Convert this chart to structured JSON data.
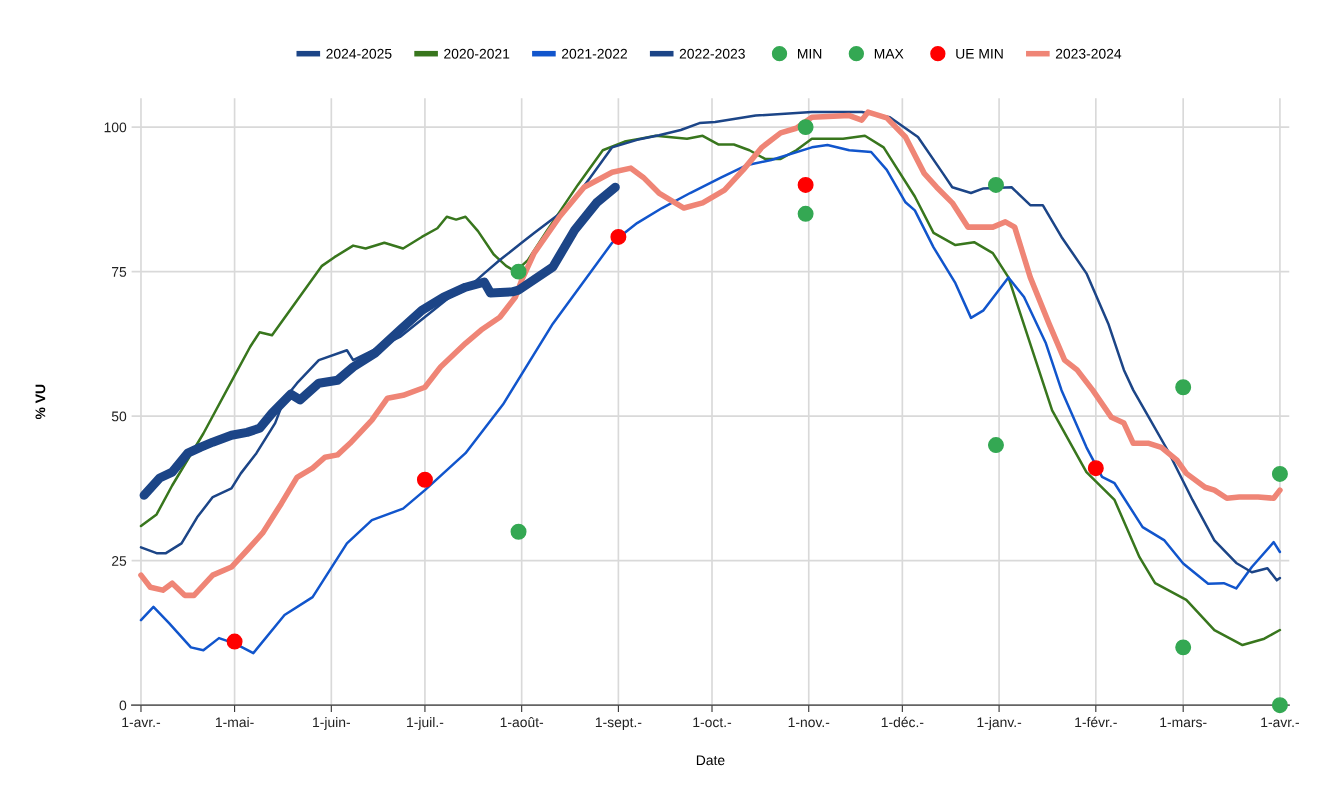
{
  "chart_data": {
    "type": "line",
    "xlabel": "Date",
    "ylabel": "% VU",
    "xlim": [
      "2024-03-29",
      "2025-04-04"
    ],
    "ylim": [
      0,
      105
    ],
    "xticks": [
      {
        "value": "2024-04-01",
        "label": "1-avr.-"
      },
      {
        "value": "2024-05-01",
        "label": "1-mai-"
      },
      {
        "value": "2024-06-01",
        "label": "1-juin-"
      },
      {
        "value": "2024-07-01",
        "label": "1-juil.-"
      },
      {
        "value": "2024-08-01",
        "label": "1-août-"
      },
      {
        "value": "2024-09-01",
        "label": "1-sept.-"
      },
      {
        "value": "2024-10-01",
        "label": "1-oct.-"
      },
      {
        "value": "2024-11-01",
        "label": "1-nov.-"
      },
      {
        "value": "2024-12-01",
        "label": "1-déc.-"
      },
      {
        "value": "2025-01-01",
        "label": "1-janv.-"
      },
      {
        "value": "2025-02-01",
        "label": "1-févr.-"
      },
      {
        "value": "2025-03-01",
        "label": "1-mars-"
      },
      {
        "value": "2025-04-01",
        "label": "1-avr.-"
      }
    ],
    "yticks": [
      0,
      25,
      50,
      75,
      100
    ],
    "grid": true,
    "legend": "top",
    "series": [
      {
        "name": "2024-2025",
        "color": "#1c4587",
        "x": [
          "2024-04-02",
          "2024-04-07",
          "2024-04-11",
          "2024-04-16",
          "2024-04-20",
          "2024-04-24",
          "2024-04-30",
          "2024-05-05",
          "2024-05-09",
          "2024-05-13",
          "2024-05-19",
          "2024-05-22",
          "2024-05-28",
          "2024-06-03",
          "2024-06-08",
          "2024-06-15",
          "2024-06-23",
          "2024-06-30",
          "2024-07-07",
          "2024-07-14",
          "2024-07-20",
          "2024-07-22",
          "2024-07-29",
          "2024-07-31",
          "2024-08-11",
          "2024-08-18",
          "2024-08-25",
          "2024-08-31"
        ],
        "values": [
          36.3,
          39.3,
          40.3,
          43.6,
          44.6,
          45.5,
          46.7,
          47.2,
          47.9,
          50.5,
          53.8,
          52.8,
          55.7,
          56.2,
          58.5,
          60.9,
          64.9,
          68.3,
          70.6,
          72.3,
          73.2,
          71.3,
          71.5,
          71.8,
          75.8,
          82.2,
          86.9,
          89.6
        ]
      },
      {
        "name": "2020-2021",
        "color": "#38761d",
        "x": [
          "2024-04-01",
          "2024-04-06",
          "2024-04-11",
          "2024-04-21",
          "2024-05-01",
          "2024-05-06",
          "2024-05-09",
          "2024-05-13",
          "2024-05-21",
          "2024-05-29",
          "2024-06-02",
          "2024-06-08",
          "2024-06-12",
          "2024-06-18",
          "2024-06-24",
          "2024-06-30",
          "2024-07-05",
          "2024-07-08",
          "2024-07-11",
          "2024-07-14",
          "2024-07-18",
          "2024-07-23",
          "2024-07-27",
          "2024-07-30",
          "2024-08-03",
          "2024-08-09",
          "2024-08-19",
          "2024-08-27",
          "2024-09-03",
          "2024-09-08",
          "2024-09-13",
          "2024-09-23",
          "2024-09-28",
          "2024-10-03",
          "2024-10-08",
          "2024-10-13",
          "2024-10-18",
          "2024-10-23",
          "2024-10-28",
          "2024-11-02",
          "2024-11-12",
          "2024-11-19",
          "2024-11-25",
          "2024-12-05",
          "2024-12-11",
          "2024-12-18",
          "2024-12-24",
          "2024-12-30",
          "2025-01-04",
          "2025-01-18",
          "2025-01-29",
          "2025-02-07",
          "2025-02-15",
          "2025-02-20",
          "2025-03-02",
          "2025-03-11",
          "2025-03-20",
          "2025-03-27",
          "2025-04-01"
        ],
        "values": [
          31,
          33,
          38,
          47,
          57,
          62,
          64.5,
          64,
          70,
          76,
          77.5,
          79.5,
          79,
          80,
          79,
          81,
          82.5,
          84.5,
          84,
          84.5,
          82,
          78,
          76,
          75,
          77,
          82,
          90,
          96,
          97.5,
          98,
          98.5,
          98,
          98.5,
          97,
          97,
          96,
          94.5,
          94.5,
          96,
          98,
          98,
          98.5,
          96.5,
          88,
          81.7,
          79.6,
          80.1,
          78.2,
          74,
          51,
          40.3,
          35.5,
          25.6,
          21.1,
          18.2,
          13,
          10.4,
          11.5,
          13
        ]
      },
      {
        "name": "2021-2022",
        "color": "#1155cc",
        "x": [
          "2024-04-01",
          "2024-04-05",
          "2024-04-10",
          "2024-04-17",
          "2024-04-21",
          "2024-04-26",
          "2024-05-01",
          "2024-05-07",
          "2024-05-17",
          "2024-05-26",
          "2024-06-06",
          "2024-06-14",
          "2024-06-24",
          "2024-07-01",
          "2024-07-14",
          "2024-07-26",
          "2024-08-11",
          "2024-08-30",
          "2024-09-07",
          "2024-09-15",
          "2024-09-24",
          "2024-10-04",
          "2024-10-12",
          "2024-10-20",
          "2024-11-02",
          "2024-11-07",
          "2024-11-14",
          "2024-11-21",
          "2024-11-26",
          "2024-12-02",
          "2024-12-05",
          "2024-12-11",
          "2024-12-18",
          "2024-12-23",
          "2024-12-27",
          "2025-01-04",
          "2025-01-09",
          "2025-01-16",
          "2025-01-21",
          "2025-01-29",
          "2025-02-03",
          "2025-02-07",
          "2025-02-16",
          "2025-02-23",
          "2025-03-01",
          "2025-03-09",
          "2025-03-14",
          "2025-03-18",
          "2025-03-23",
          "2025-03-30",
          "2025-04-01"
        ],
        "values": [
          14.7,
          17,
          14.2,
          10,
          9.5,
          11.6,
          10.7,
          9,
          15.6,
          18.7,
          28,
          32,
          34,
          37.2,
          43.6,
          52,
          66,
          80,
          83.4,
          86,
          88.6,
          91.3,
          93.4,
          94.3,
          96.5,
          96.9,
          96,
          95.7,
          92.6,
          87,
          85.6,
          79.2,
          73,
          67,
          68.3,
          74,
          70.6,
          62.6,
          54.5,
          44.6,
          39.5,
          38.4,
          30.8,
          28.5,
          24.5,
          21,
          21.1,
          20.2,
          23.9,
          28.2,
          26.5
        ]
      },
      {
        "name": "2022-2023",
        "color": "#1c4587",
        "x": [
          "2024-04-01",
          "2024-04-06",
          "2024-04-09",
          "2024-04-14",
          "2024-04-19",
          "2024-04-24",
          "2024-04-30",
          "2024-05-03",
          "2024-05-08",
          "2024-05-14",
          "2024-05-17",
          "2024-05-21",
          "2024-05-28",
          "2024-06-06",
          "2024-06-08",
          "2024-06-23",
          "2024-07-09",
          "2024-07-14",
          "2024-07-20",
          "2024-07-25",
          "2024-08-01",
          "2024-08-05",
          "2024-08-16",
          "2024-08-23",
          "2024-08-30",
          "2024-09-07",
          "2024-09-14",
          "2024-09-21",
          "2024-09-27",
          "2024-10-02",
          "2024-10-15",
          "2024-11-02",
          "2024-11-18",
          "2024-11-27",
          "2024-12-02",
          "2024-12-06",
          "2024-12-14",
          "2024-12-17",
          "2024-12-23",
          "2024-12-27",
          "2025-01-05",
          "2025-01-11",
          "2025-01-15",
          "2025-01-21",
          "2025-01-29",
          "2025-02-05",
          "2025-02-10",
          "2025-02-13",
          "2025-02-18",
          "2025-02-24",
          "2025-03-04",
          "2025-03-11",
          "2025-03-18",
          "2025-03-23",
          "2025-03-28",
          "2025-03-31",
          "2025-04-01"
        ],
        "values": [
          27.3,
          26.3,
          26.3,
          28,
          32.5,
          36,
          37.5,
          40.1,
          43.6,
          48.8,
          53,
          55.7,
          59.7,
          61.4,
          59.7,
          63.7,
          70.6,
          71.8,
          74.7,
          77,
          80,
          81.7,
          86.2,
          91.3,
          96.5,
          97.8,
          98.6,
          99.5,
          100.7,
          100.9,
          102,
          102.6,
          102.6,
          101.7,
          99.8,
          98.3,
          92,
          89.6,
          88.6,
          89.4,
          89.6,
          86.5,
          86.5,
          81,
          74.7,
          66,
          58,
          54.5,
          49.8,
          44.1,
          35.5,
          28.5,
          24.6,
          23,
          23.7,
          21.6,
          22
        ]
      },
      {
        "name": "MIN",
        "type": "scatter",
        "marker": "circle",
        "color": "#34a853",
        "x": [
          "2024-07-31",
          "2024-10-31",
          "2024-12-31",
          "2025-03-01",
          "2025-04-01"
        ],
        "values": [
          30,
          85,
          45,
          10,
          0
        ]
      },
      {
        "name": "MAX",
        "type": "scatter",
        "marker": "circle",
        "color": "#34a853",
        "x": [
          "2024-07-31",
          "2024-10-31",
          "2024-12-31",
          "2025-03-01",
          "2025-04-01"
        ],
        "values": [
          75,
          100,
          90,
          55,
          40
        ]
      },
      {
        "name": "UE MIN",
        "type": "scatter",
        "marker": "circle",
        "color": "#ff0000",
        "x": [
          "2024-05-01",
          "2024-07-01",
          "2024-09-01",
          "2024-10-31",
          "2025-02-01"
        ],
        "values": [
          11,
          39,
          81,
          90,
          41
        ]
      },
      {
        "name": "2023-2024",
        "color": "#ef8576",
        "x": [
          "2024-04-01",
          "2024-04-04",
          "2024-04-08",
          "2024-04-11",
          "2024-04-15",
          "2024-04-18",
          "2024-04-24",
          "2024-04-30",
          "2024-05-05",
          "2024-05-10",
          "2024-05-16",
          "2024-05-21",
          "2024-05-26",
          "2024-05-30",
          "2024-06-03",
          "2024-06-07",
          "2024-06-14",
          "2024-06-19",
          "2024-06-24",
          "2024-07-01",
          "2024-07-06",
          "2024-07-14",
          "2024-07-19",
          "2024-07-25",
          "2024-07-30",
          "2024-08-01",
          "2024-08-05",
          "2024-08-13",
          "2024-08-21",
          "2024-08-30",
          "2024-09-05",
          "2024-09-09",
          "2024-09-14",
          "2024-09-22",
          "2024-09-28",
          "2024-10-05",
          "2024-10-11",
          "2024-10-17",
          "2024-10-23",
          "2024-10-28",
          "2024-11-02",
          "2024-11-14",
          "2024-11-18",
          "2024-11-20",
          "2024-11-26",
          "2024-12-02",
          "2024-12-08",
          "2024-12-12",
          "2024-12-17",
          "2024-12-22",
          "2024-12-30",
          "2025-01-03",
          "2025-01-06",
          "2025-01-11",
          "2025-01-17",
          "2025-01-22",
          "2025-01-26",
          "2025-01-31",
          "2025-02-06",
          "2025-02-10",
          "2025-02-13",
          "2025-02-18",
          "2025-02-22",
          "2025-02-27",
          "2025-03-02",
          "2025-03-08",
          "2025-03-11",
          "2025-03-15",
          "2025-03-19",
          "2025-03-25",
          "2025-03-30",
          "2025-04-01"
        ],
        "values": [
          22.5,
          20.4,
          19.9,
          21.1,
          19,
          19,
          22.5,
          23.9,
          26.8,
          29.8,
          34.9,
          39.4,
          41,
          42.9,
          43.3,
          45.3,
          49.3,
          53.1,
          53.6,
          55,
          58.5,
          62.6,
          64.9,
          67.1,
          70.6,
          73.5,
          78.2,
          84.4,
          89.6,
          92.2,
          92.9,
          91.3,
          88.6,
          86,
          86.9,
          89.1,
          92.6,
          96.5,
          99,
          99.8,
          101.7,
          102,
          101.2,
          102.6,
          101.6,
          98.3,
          92,
          89.6,
          86.9,
          82.7,
          82.7,
          83.6,
          82.7,
          74,
          66,
          59.7,
          58,
          54.5,
          49.8,
          48.8,
          45.3,
          45.3,
          44.6,
          42.4,
          40.1,
          37.7,
          37.2,
          35.8,
          36,
          36,
          35.8,
          37.2
        ]
      }
    ]
  }
}
